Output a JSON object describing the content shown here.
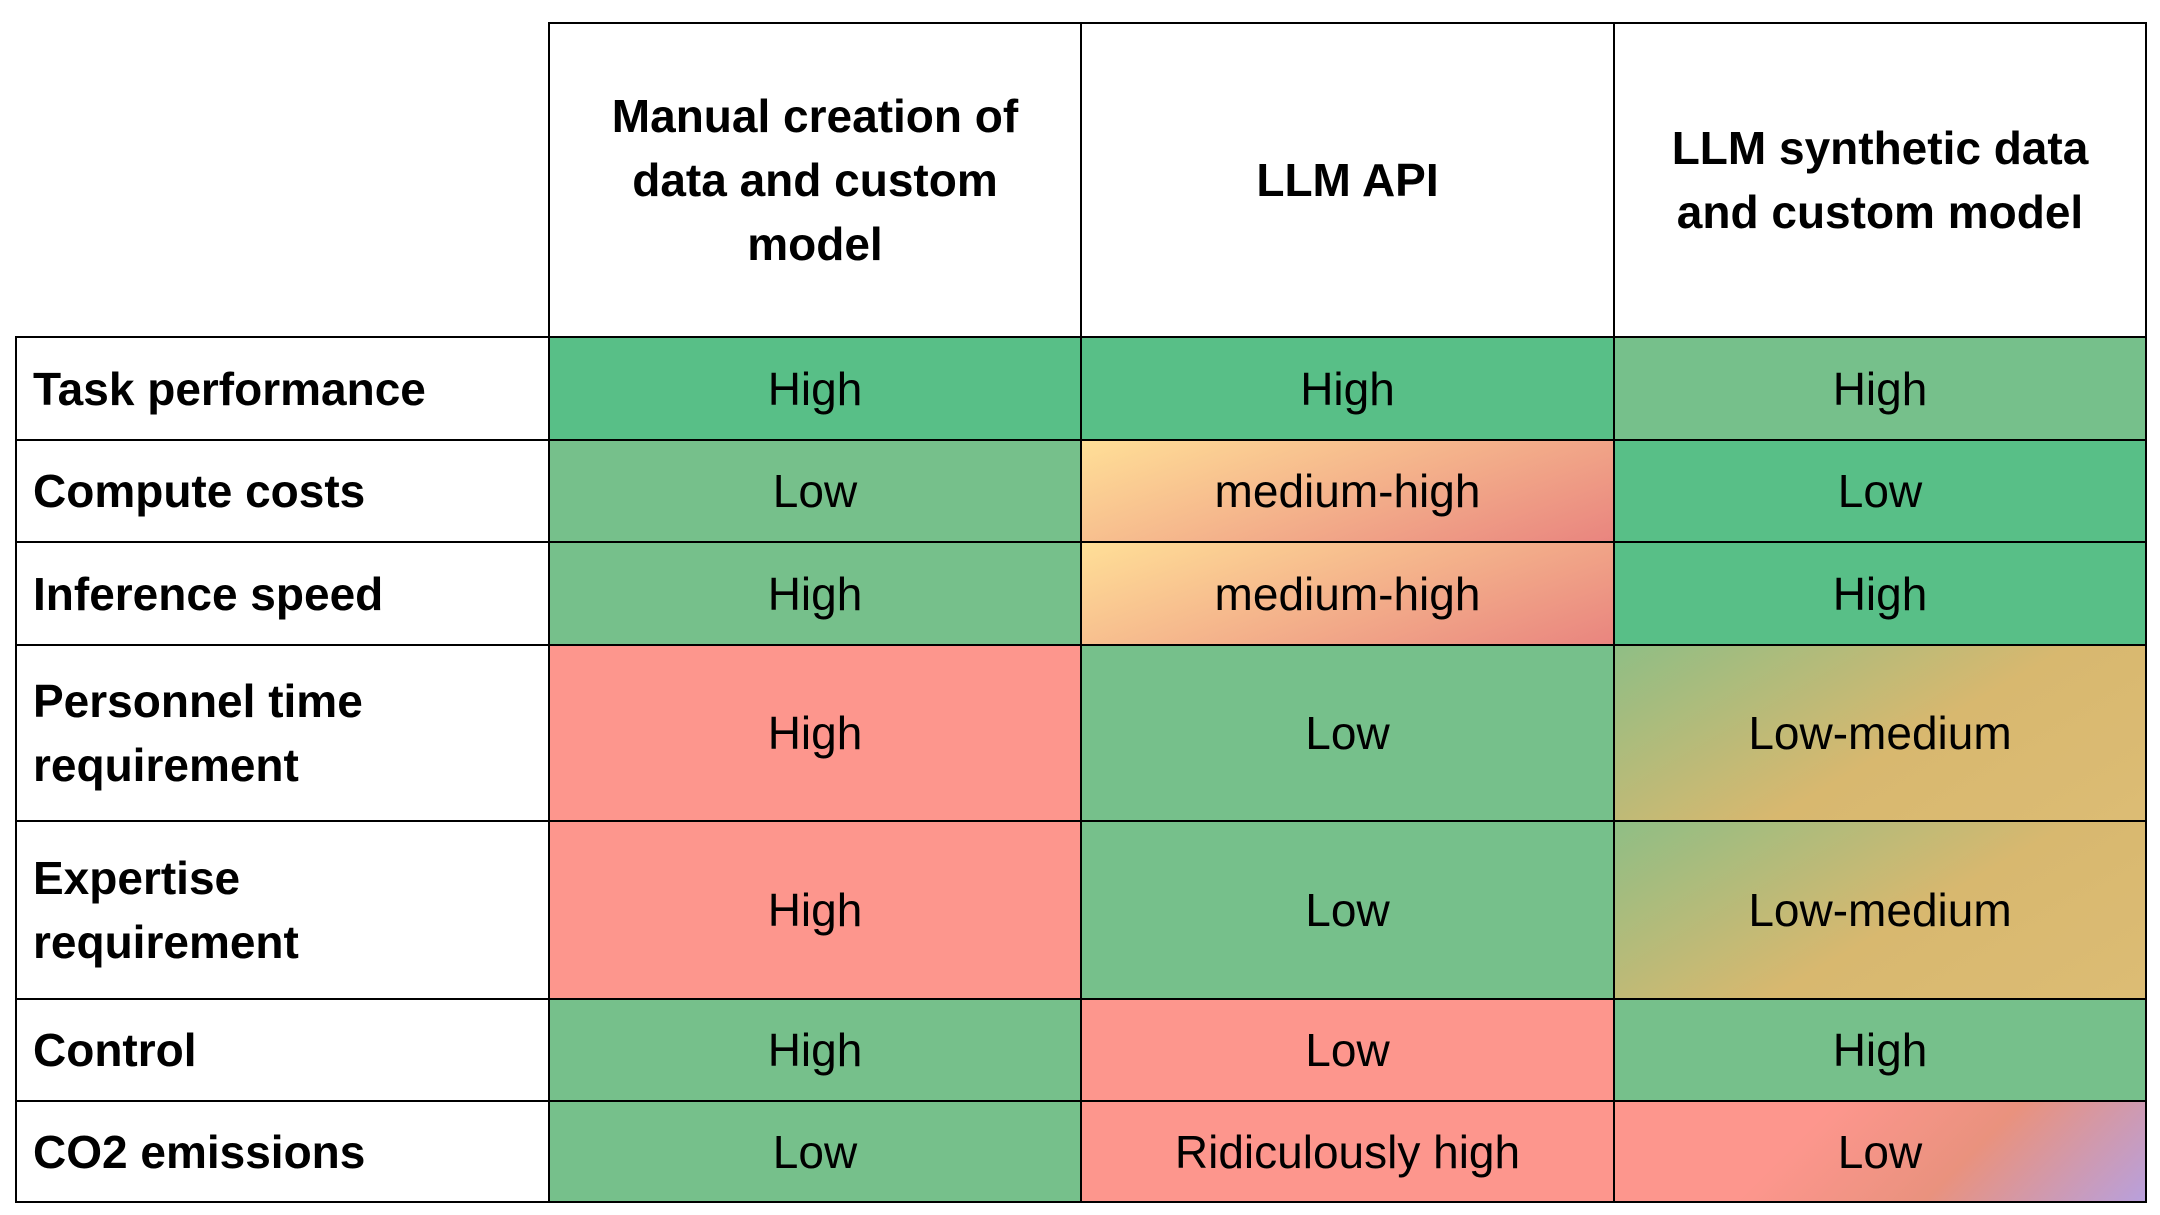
{
  "colors": {
    "green_dark": "#58bf87",
    "green": "#76c08b",
    "red": "#fd968d",
    "medium_high_gradient": [
      "#ffdf97",
      "#e9857f"
    ],
    "low_medium_gradient": [
      "#8fbe85",
      "#d8b86f",
      "#dcbc74"
    ],
    "ridiculous_gradient": [
      "#fd968d",
      "#e9927e",
      "#b8a0dc"
    ]
  },
  "table": {
    "columns": [
      "Manual creation of\ndata and custom\nmodel",
      "LLM API",
      "LLM synthetic data\nand custom model"
    ],
    "rows": [
      {
        "label": "Task performance",
        "values": [
          "High",
          "High",
          "High"
        ],
        "styles": [
          "green_dark",
          "green_dark",
          "green"
        ]
      },
      {
        "label": "Compute costs",
        "values": [
          "Low",
          "medium-high",
          "Low"
        ],
        "styles": [
          "green",
          "medium_high",
          "green_dark"
        ]
      },
      {
        "label": "Inference speed",
        "values": [
          "High",
          "medium-high",
          "High"
        ],
        "styles": [
          "green",
          "medium_high",
          "green_dark"
        ]
      },
      {
        "label": "Personnel time\nrequirement",
        "values": [
          "High",
          "Low",
          "Low-medium"
        ],
        "styles": [
          "red",
          "green",
          "low_medium"
        ]
      },
      {
        "label": "Expertise\nrequirement",
        "values": [
          "High",
          "Low",
          "Low-medium"
        ],
        "styles": [
          "red",
          "green",
          "low_medium"
        ]
      },
      {
        "label": "Control",
        "values": [
          "High",
          "Low",
          "High"
        ],
        "styles": [
          "green",
          "red",
          "green"
        ]
      },
      {
        "label": "CO2 emissions",
        "values": [
          "Low",
          "Ridiculously high",
          "Low"
        ],
        "styles": [
          "green",
          "red",
          "ridiculous"
        ]
      }
    ]
  }
}
